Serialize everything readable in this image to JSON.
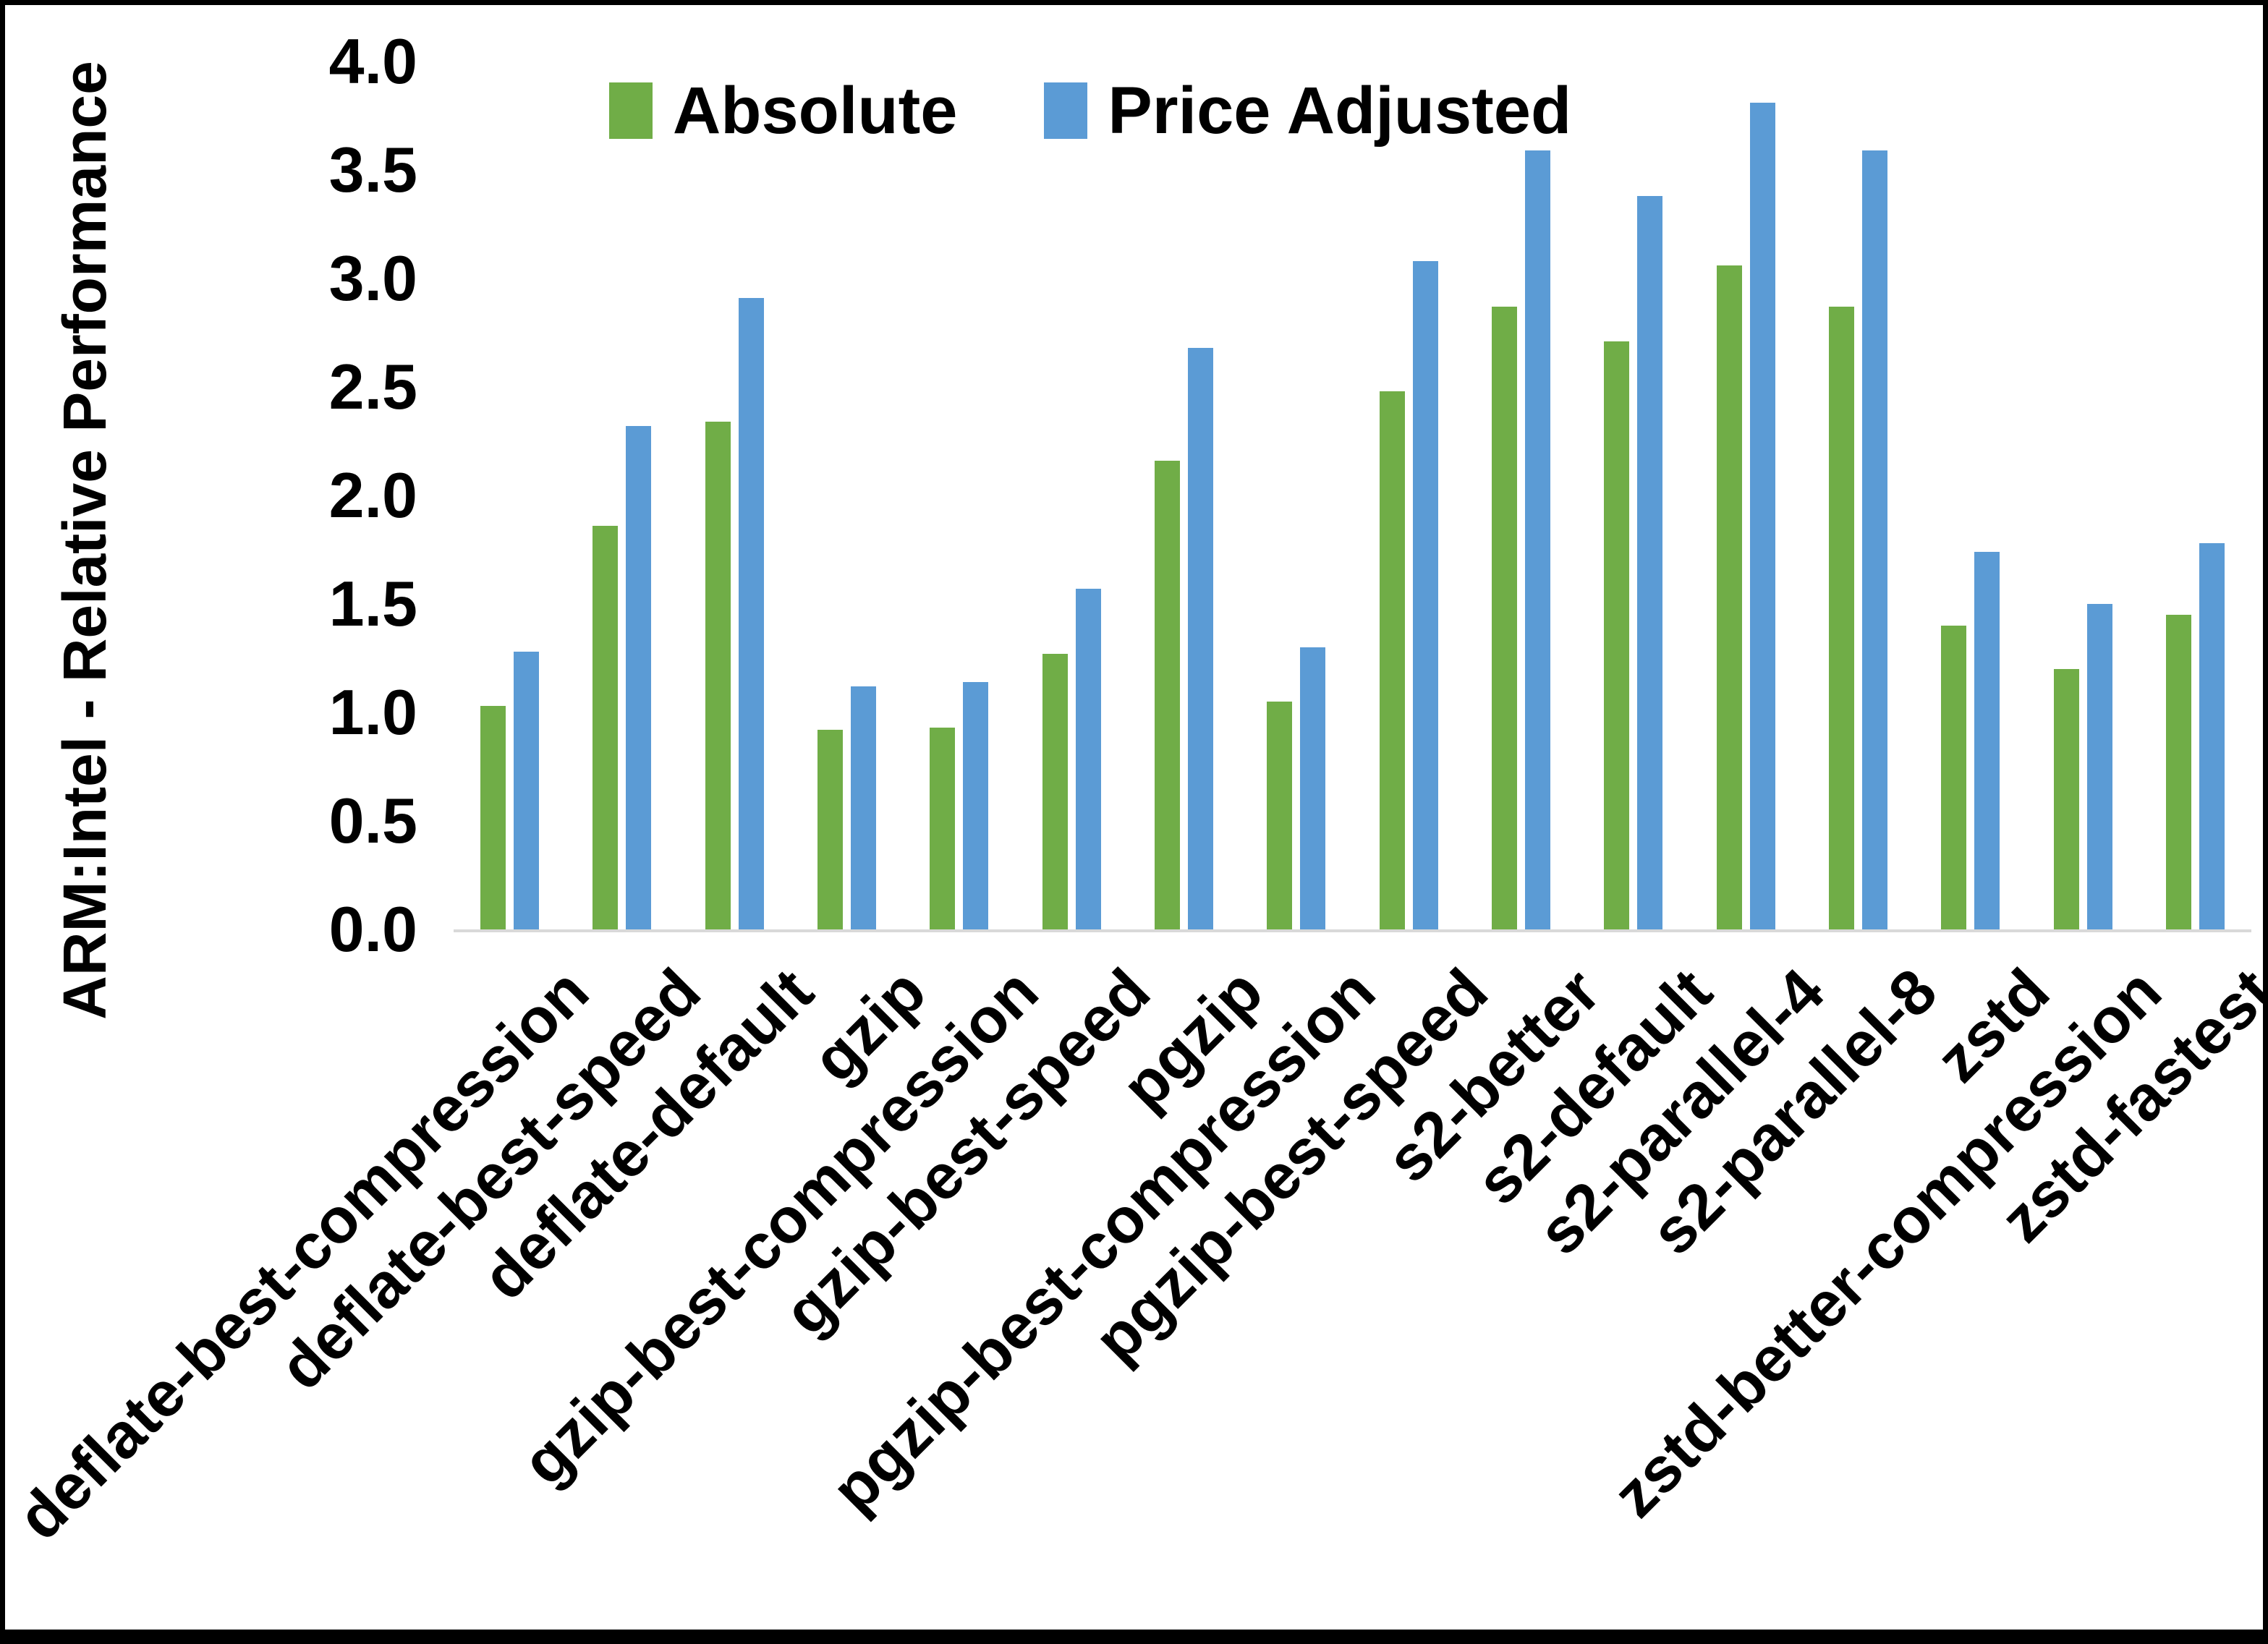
{
  "figure": {
    "background": "#ffffff",
    "frame_border_color": "#000000",
    "axis_line_color": "#d9d9d9"
  },
  "y_axis": {
    "title": "ARM:Intel - Relative Performance",
    "ticks": [
      "4.0",
      "3.5",
      "3.0",
      "2.5",
      "2.0",
      "1.5",
      "1.0",
      "0.5",
      "0.0"
    ]
  },
  "legend": [
    {
      "label": "Absolute",
      "color": "#70ad47"
    },
    {
      "label": "Price Adjusted",
      "color": "#5b9bd5"
    }
  ],
  "chart_data": {
    "type": "bar",
    "title": "",
    "xlabel": "",
    "ylabel": "ARM:Intel - Relative Performance",
    "ylim": [
      0,
      4.0
    ],
    "ytick_step": 0.5,
    "grid": false,
    "legend_position": "top-center",
    "categories": [
      "deflate-best-compression",
      "deflate-best-speed",
      "deflate-default",
      "gzip",
      "gzip-best-compression",
      "gzip-best-speed",
      "pgzip",
      "pgzip-best-compression",
      "pgzip-best-speed",
      "s2-better",
      "s2-default",
      "s2-parallel-4",
      "s2-parallel-8",
      "zstd",
      "zstd-better-compression",
      "zstd-fastest"
    ],
    "series": [
      {
        "name": "Absolute",
        "color": "#70ad47",
        "values": [
          1.03,
          1.86,
          2.34,
          0.92,
          0.93,
          1.27,
          2.16,
          1.05,
          2.48,
          2.87,
          2.71,
          3.06,
          2.87,
          1.4,
          1.2,
          1.45
        ]
      },
      {
        "name": "Price Adjusted",
        "color": "#5b9bd5",
        "values": [
          1.28,
          2.32,
          2.91,
          1.12,
          1.14,
          1.57,
          2.68,
          1.3,
          3.08,
          3.59,
          3.38,
          3.81,
          3.59,
          1.74,
          1.5,
          1.78
        ]
      }
    ]
  }
}
